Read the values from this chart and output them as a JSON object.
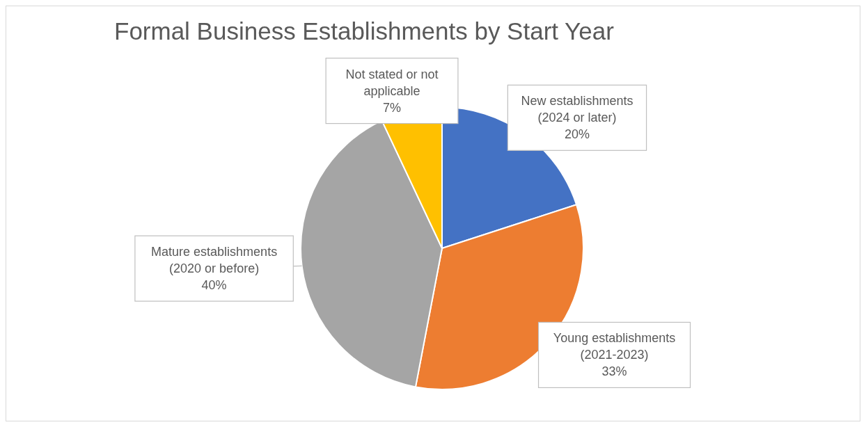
{
  "chart_data": {
    "type": "pie",
    "title": "Formal Business Establishments by Start Year",
    "categories": [
      "New establishments (2024 or later)",
      "Young establishments (2021-2023)",
      "Mature establishments (2020 or before)",
      "Not stated or not applicable"
    ],
    "values": [
      20,
      33,
      40,
      7
    ],
    "value_labels": [
      "20%",
      "33%",
      "40%",
      "7%"
    ],
    "colors": [
      "#4472c4",
      "#ed7d31",
      "#a5a5a5",
      "#ffc000"
    ],
    "legend": false
  }
}
